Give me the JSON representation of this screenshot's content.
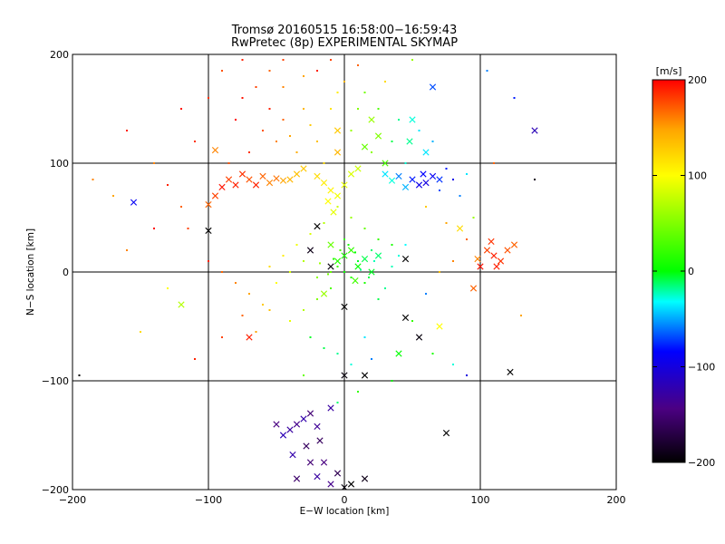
{
  "figure": {
    "title_line1": "Tromsø 20160515 16:58:00−16:59:43",
    "title_line2": "RwPretec (8p) EXPERIMENTAL SKYMAP"
  },
  "chart_data": {
    "type": "scatter",
    "xlabel": "E−W location [km]",
    "ylabel": "N−S location [km]",
    "xlim": [
      -200,
      200
    ],
    "ylim": [
      -200,
      200
    ],
    "x_ticks": [
      -200,
      -100,
      0,
      100,
      200
    ],
    "y_ticks": [
      -200,
      -100,
      0,
      100,
      200
    ],
    "x_tick_labels": [
      "−200",
      "−100",
      "0",
      "100",
      "200"
    ],
    "y_tick_labels": [
      "−200",
      "−100",
      "0",
      "100",
      "200"
    ],
    "grid": true,
    "colorbar": {
      "label": "[m/s]",
      "range": [
        -200,
        200
      ],
      "ticks": [
        200,
        100,
        0,
        -100,
        -200
      ],
      "tick_labels": [
        "200",
        "100",
        "0",
        "−100",
        "−200"
      ],
      "palette": [
        "#000000",
        "#4b0082",
        "#0000ff",
        "#00ffff",
        "#00ff00",
        "#ffff00",
        "#ffa500",
        "#ff0000"
      ]
    },
    "series": [
      {
        "marker": "cross",
        "points": [
          [
            -85,
            85,
            180
          ],
          [
            -80,
            80,
            190
          ],
          [
            -75,
            90,
            185
          ],
          [
            -70,
            85,
            175
          ],
          [
            -65,
            80,
            190
          ],
          [
            -60,
            88,
            170
          ],
          [
            -55,
            82,
            160
          ],
          [
            -50,
            86,
            165
          ],
          [
            -45,
            84,
            150
          ],
          [
            -40,
            85,
            140
          ],
          [
            -90,
            78,
            195
          ],
          [
            -95,
            70,
            180
          ],
          [
            -100,
            62,
            170
          ],
          [
            -35,
            90,
            135
          ],
          [
            -30,
            95,
            130
          ],
          [
            -20,
            88,
            120
          ],
          [
            -15,
            82,
            110
          ],
          [
            -10,
            75,
            105
          ],
          [
            -5,
            70,
            95
          ],
          [
            0,
            80,
            90
          ],
          [
            5,
            90,
            85
          ],
          [
            10,
            95,
            80
          ],
          [
            -12,
            65,
            100
          ],
          [
            -8,
            55,
            90
          ],
          [
            30,
            90,
            -40
          ],
          [
            40,
            88,
            -60
          ],
          [
            50,
            85,
            -80
          ],
          [
            55,
            80,
            -95
          ],
          [
            60,
            82,
            -100
          ],
          [
            65,
            88,
            -90
          ],
          [
            70,
            85,
            -75
          ],
          [
            45,
            78,
            -50
          ],
          [
            35,
            84,
            -30
          ],
          [
            58,
            90,
            -85
          ],
          [
            5,
            20,
            20
          ],
          [
            0,
            15,
            10
          ],
          [
            -5,
            10,
            15
          ],
          [
            10,
            5,
            0
          ],
          [
            15,
            12,
            -10
          ],
          [
            20,
            0,
            -5
          ],
          [
            -10,
            25,
            40
          ],
          [
            8,
            -8,
            25
          ],
          [
            -15,
            -20,
            60
          ],
          [
            25,
            15,
            -15
          ],
          [
            20,
            140,
            60
          ],
          [
            25,
            125,
            50
          ],
          [
            15,
            115,
            40
          ],
          [
            30,
            100,
            30
          ],
          [
            -5,
            130,
            130
          ],
          [
            50,
            140,
            -30
          ],
          [
            60,
            110,
            -40
          ],
          [
            48,
            120,
            -20
          ],
          [
            65,
            170,
            -70
          ],
          [
            -5,
            110,
            140
          ],
          [
            105,
            20,
            180
          ],
          [
            110,
            15,
            190
          ],
          [
            115,
            10,
            185
          ],
          [
            120,
            20,
            175
          ],
          [
            112,
            5,
            190
          ],
          [
            98,
            12,
            160
          ],
          [
            125,
            25,
            170
          ],
          [
            100,
            5,
            195
          ],
          [
            108,
            28,
            185
          ],
          [
            95,
            -15,
            170
          ],
          [
            -40,
            -145,
            -130
          ],
          [
            -35,
            -140,
            -140
          ],
          [
            -30,
            -135,
            -125
          ],
          [
            -25,
            -130,
            -150
          ],
          [
            -20,
            -142,
            -135
          ],
          [
            -45,
            -150,
            -120
          ],
          [
            -28,
            -160,
            -160
          ],
          [
            -15,
            -175,
            -145
          ],
          [
            -35,
            -190,
            -155
          ],
          [
            -10,
            -195,
            -140
          ],
          [
            -20,
            -188,
            -130
          ],
          [
            -5,
            -185,
            -165
          ],
          [
            5,
            -195,
            -200
          ],
          [
            0,
            -198,
            -195
          ],
          [
            15,
            -190,
            -190
          ],
          [
            -10,
            -125,
            -130
          ],
          [
            -25,
            -175,
            -150
          ],
          [
            -38,
            -168,
            -125
          ],
          [
            -18,
            -155,
            -160
          ],
          [
            -50,
            -140,
            -145
          ],
          [
            -100,
            38,
            -200
          ],
          [
            -20,
            42,
            -200
          ],
          [
            45,
            12,
            -200
          ],
          [
            55,
            -60,
            -195
          ],
          [
            45,
            -42,
            -200
          ],
          [
            15,
            -95,
            -200
          ],
          [
            0,
            -95,
            -195
          ],
          [
            75,
            -148,
            -200
          ],
          [
            122,
            -92,
            -200
          ],
          [
            -10,
            5,
            -195
          ],
          [
            -25,
            20,
            -190
          ],
          [
            0,
            -32,
            -200
          ],
          [
            -155,
            64,
            -90
          ],
          [
            140,
            130,
            -120
          ],
          [
            40,
            -75,
            0
          ],
          [
            -70,
            -60,
            190
          ],
          [
            -95,
            112,
            160
          ],
          [
            -120,
            -30,
            70
          ],
          [
            85,
            40,
            120
          ],
          [
            70,
            -50,
            100
          ]
        ]
      },
      {
        "marker": "dot",
        "points": [
          [
            -60,
            130,
            175
          ],
          [
            -55,
            150,
            190
          ],
          [
            -50,
            120,
            160
          ],
          [
            -45,
            140,
            170
          ],
          [
            -40,
            125,
            150
          ],
          [
            -35,
            110,
            145
          ],
          [
            -30,
            150,
            140
          ],
          [
            -25,
            135,
            130
          ],
          [
            -20,
            120,
            135
          ],
          [
            -15,
            100,
            120
          ],
          [
            -70,
            110,
            185
          ],
          [
            -75,
            160,
            195
          ],
          [
            -65,
            170,
            180
          ],
          [
            -80,
            140,
            200
          ],
          [
            -85,
            100,
            175
          ],
          [
            -10,
            150,
            115
          ],
          [
            -5,
            165,
            110
          ],
          [
            -55,
            185,
            170
          ],
          [
            -45,
            170,
            160
          ],
          [
            -30,
            180,
            150
          ],
          [
            5,
            130,
            60
          ],
          [
            10,
            150,
            50
          ],
          [
            15,
            165,
            45
          ],
          [
            20,
            110,
            55
          ],
          [
            25,
            150,
            30
          ],
          [
            35,
            120,
            -10
          ],
          [
            40,
            140,
            -20
          ],
          [
            45,
            100,
            -30
          ],
          [
            55,
            130,
            -40
          ],
          [
            65,
            120,
            -50
          ],
          [
            75,
            95,
            -80
          ],
          [
            80,
            85,
            -95
          ],
          [
            70,
            75,
            -70
          ],
          [
            85,
            70,
            -60
          ],
          [
            90,
            90,
            -40
          ],
          [
            -5,
            60,
            80
          ],
          [
            5,
            50,
            60
          ],
          [
            15,
            40,
            40
          ],
          [
            25,
            30,
            20
          ],
          [
            35,
            25,
            10
          ],
          [
            -15,
            45,
            70
          ],
          [
            -25,
            35,
            85
          ],
          [
            -35,
            25,
            95
          ],
          [
            -45,
            15,
            110
          ],
          [
            -55,
            5,
            120
          ],
          [
            0,
            0,
            5
          ],
          [
            5,
            -5,
            15
          ],
          [
            -5,
            5,
            25
          ],
          [
            10,
            10,
            -5
          ],
          [
            15,
            -10,
            10
          ],
          [
            20,
            20,
            -15
          ],
          [
            -10,
            -15,
            30
          ],
          [
            -20,
            -25,
            50
          ],
          [
            -30,
            -35,
            70
          ],
          [
            -40,
            -45,
            90
          ],
          [
            25,
            -25,
            -10
          ],
          [
            30,
            -15,
            -20
          ],
          [
            35,
            5,
            -25
          ],
          [
            40,
            15,
            -30
          ],
          [
            45,
            25,
            -35
          ],
          [
            -25,
            -60,
            -5
          ],
          [
            -15,
            -70,
            -10
          ],
          [
            -5,
            -75,
            -20
          ],
          [
            5,
            -85,
            -30
          ],
          [
            15,
            -60,
            -40
          ],
          [
            -60,
            -30,
            130
          ],
          [
            -70,
            -20,
            150
          ],
          [
            -80,
            -10,
            160
          ],
          [
            -90,
            0,
            170
          ],
          [
            -100,
            10,
            190
          ],
          [
            -115,
            40,
            180
          ],
          [
            -120,
            60,
            170
          ],
          [
            -130,
            80,
            190
          ],
          [
            -140,
            100,
            160
          ],
          [
            -110,
            120,
            185
          ],
          [
            -50,
            -10,
            100
          ],
          [
            -40,
            0,
            85
          ],
          [
            -30,
            10,
            70
          ],
          [
            -20,
            -5,
            55
          ],
          [
            -10,
            0,
            40
          ],
          [
            -170,
            70,
            150
          ],
          [
            -185,
            85,
            160
          ],
          [
            -160,
            130,
            190
          ],
          [
            -150,
            -55,
            120
          ],
          [
            -130,
            -15,
            100
          ],
          [
            60,
            60,
            130
          ],
          [
            75,
            45,
            150
          ],
          [
            90,
            30,
            170
          ],
          [
            80,
            10,
            160
          ],
          [
            70,
            0,
            140
          ],
          [
            60,
            -20,
            -60
          ],
          [
            50,
            -45,
            20
          ],
          [
            65,
            -75,
            10
          ],
          [
            80,
            -85,
            -30
          ],
          [
            90,
            -95,
            -100
          ],
          [
            110,
            100,
            170
          ],
          [
            125,
            160,
            -80
          ],
          [
            105,
            185,
            -60
          ],
          [
            95,
            50,
            60
          ],
          [
            130,
            -40,
            150
          ],
          [
            -90,
            -60,
            180
          ],
          [
            -110,
            -80,
            190
          ],
          [
            -75,
            -40,
            170
          ],
          [
            -65,
            -55,
            150
          ],
          [
            -55,
            -35,
            135
          ],
          [
            0,
            30,
            20
          ],
          [
            3,
            25,
            10
          ],
          [
            -3,
            20,
            30
          ],
          [
            8,
            18,
            0
          ],
          [
            -8,
            12,
            15
          ],
          [
            12,
            2,
            -20
          ],
          [
            -12,
            -2,
            45
          ],
          [
            18,
            -5,
            -10
          ],
          [
            -18,
            8,
            60
          ],
          [
            22,
            10,
            -25
          ],
          [
            -20,
            185,
            190
          ],
          [
            -10,
            195,
            180
          ],
          [
            10,
            190,
            170
          ],
          [
            30,
            175,
            120
          ],
          [
            50,
            195,
            60
          ],
          [
            -100,
            160,
            185
          ],
          [
            -120,
            150,
            195
          ],
          [
            -90,
            185,
            175
          ],
          [
            -140,
            40,
            200
          ],
          [
            -160,
            20,
            160
          ],
          [
            140,
            85,
            -190
          ],
          [
            -195,
            -95,
            -200
          ],
          [
            -45,
            195,
            180
          ],
          [
            -75,
            195,
            190
          ],
          [
            0,
            175,
            140
          ],
          [
            35,
            -100,
            0
          ],
          [
            -5,
            -120,
            -15
          ],
          [
            10,
            -110,
            20
          ],
          [
            -30,
            -95,
            40
          ],
          [
            20,
            -80,
            -60
          ]
        ]
      }
    ]
  }
}
